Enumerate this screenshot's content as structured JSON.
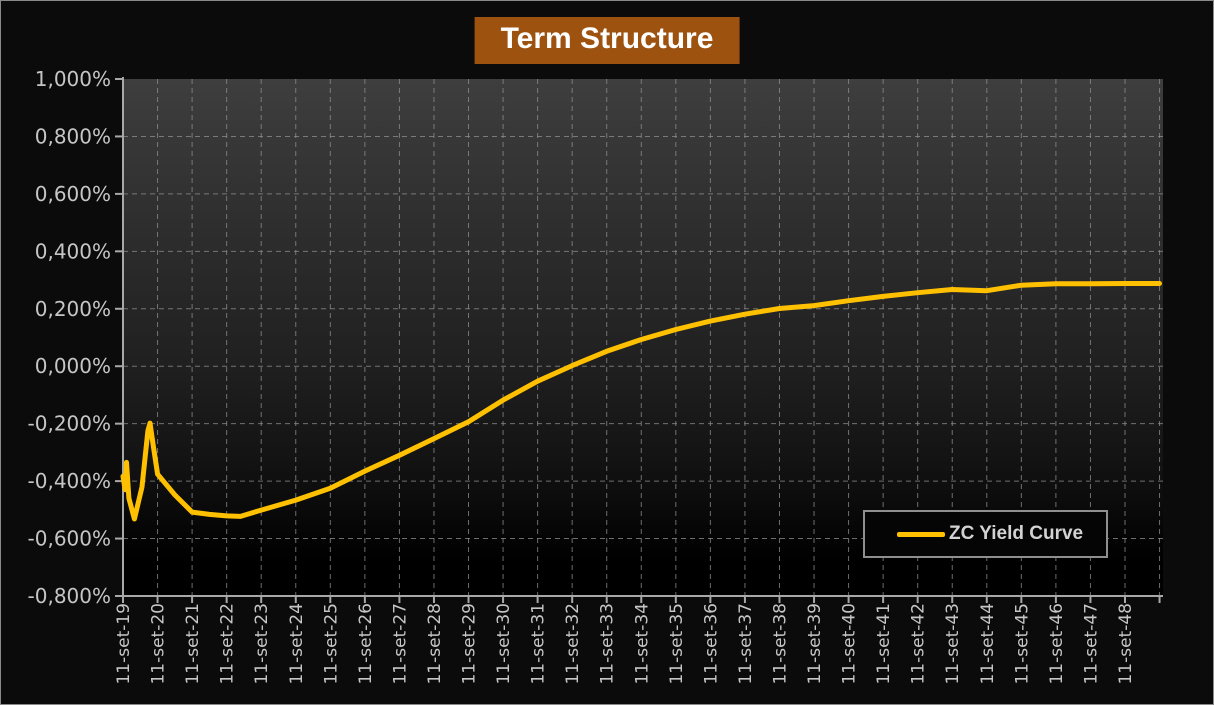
{
  "title": "Term Structure",
  "legend": {
    "label": "ZC Yield Curve"
  },
  "colors": {
    "title_background": "#9E5210",
    "series_line": "#FFC000",
    "axis_labels": "#C6C6C6",
    "gridlines": "#909090",
    "page_background": "#0B0B0B"
  },
  "chart_data": {
    "type": "line",
    "title": "Term Structure",
    "xlabel": "",
    "ylabel": "",
    "grid": {
      "horizontal": true,
      "vertical": true,
      "style": "dashed"
    },
    "legend_position": "inside-bottom-right",
    "y_axis": {
      "range_pct": [
        -0.8,
        1.0
      ],
      "tick_values_pct": [
        1.0,
        0.8,
        0.6,
        0.4,
        0.2,
        0.0,
        -0.2,
        -0.4,
        -0.6,
        -0.8
      ],
      "tick_labels": [
        "1,000%",
        "0,800%",
        "0,600%",
        "0,400%",
        "0,200%",
        "0,000%",
        "-0,200%",
        "-0,400%",
        "-0,600%",
        "-0,800%"
      ]
    },
    "x_axis": {
      "axis_span_years": [
        0,
        30.1
      ],
      "tick_interval_years": 1,
      "tick_labels": [
        "11-set-19",
        "11-set-20",
        "11-set-21",
        "11-set-22",
        "11-set-23",
        "11-set-24",
        "11-set-25",
        "11-set-26",
        "11-set-27",
        "11-set-28",
        "11-set-29",
        "11-set-30",
        "11-set-31",
        "11-set-32",
        "11-set-33",
        "11-set-34",
        "11-set-35",
        "11-set-36",
        "11-set-37",
        "11-set-38",
        "11-set-39",
        "11-set-40",
        "11-set-41",
        "11-set-42",
        "11-set-43",
        "11-set-44",
        "11-set-45",
        "11-set-46",
        "11-set-47",
        "11-set-48"
      ]
    },
    "series": [
      {
        "name": "ZC Yield Curve",
        "color": "#FFC000",
        "points_years_vs_pct": [
          [
            0.0,
            -0.383
          ],
          [
            0.06,
            -0.43
          ],
          [
            0.1,
            -0.335
          ],
          [
            0.17,
            -0.46
          ],
          [
            0.33,
            -0.532
          ],
          [
            0.55,
            -0.42
          ],
          [
            0.72,
            -0.225
          ],
          [
            0.78,
            -0.198
          ],
          [
            0.88,
            -0.28
          ],
          [
            1.0,
            -0.376
          ],
          [
            1.5,
            -0.448
          ],
          [
            2.0,
            -0.508
          ],
          [
            2.5,
            -0.516
          ],
          [
            3.0,
            -0.521
          ],
          [
            3.4,
            -0.523
          ],
          [
            4.0,
            -0.501
          ],
          [
            5.0,
            -0.466
          ],
          [
            6.0,
            -0.425
          ],
          [
            7.0,
            -0.365
          ],
          [
            8.0,
            -0.31
          ],
          [
            9.0,
            -0.252
          ],
          [
            10.0,
            -0.193
          ],
          [
            11.0,
            -0.118
          ],
          [
            12.0,
            -0.052
          ],
          [
            13.0,
            0.002
          ],
          [
            14.0,
            0.052
          ],
          [
            15.0,
            0.093
          ],
          [
            16.0,
            0.128
          ],
          [
            17.0,
            0.157
          ],
          [
            18.0,
            0.181
          ],
          [
            19.0,
            0.201
          ],
          [
            20.0,
            0.211
          ],
          [
            21.0,
            0.228
          ],
          [
            22.0,
            0.243
          ],
          [
            23.0,
            0.256
          ],
          [
            24.0,
            0.267
          ],
          [
            25.0,
            0.263
          ],
          [
            26.0,
            0.282
          ],
          [
            27.0,
            0.287
          ],
          [
            28.0,
            0.287
          ],
          [
            29.0,
            0.288
          ],
          [
            30.0,
            0.288
          ]
        ]
      }
    ]
  }
}
